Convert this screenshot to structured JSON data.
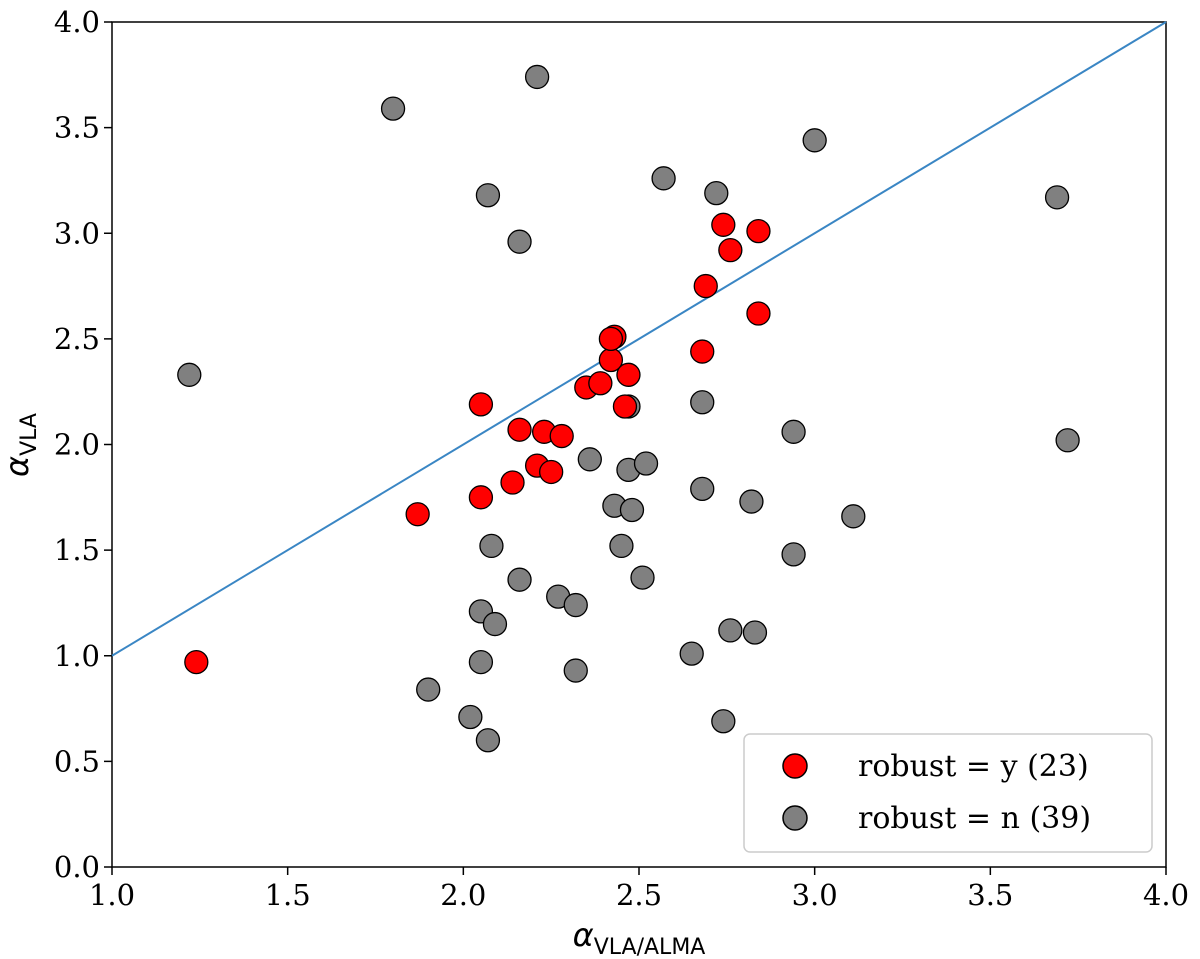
{
  "chart_data": {
    "type": "scatter",
    "title": "",
    "xlabel": {
      "symbol": "α",
      "subscript": "VLA/ALMA"
    },
    "ylabel": {
      "symbol": "α",
      "subscript": "VLA"
    },
    "xlim": [
      1.0,
      4.0
    ],
    "ylim": [
      0.0,
      4.0
    ],
    "x_ticks": [
      "1.0",
      "1.5",
      "2.0",
      "2.5",
      "3.0",
      "3.5",
      "4.0"
    ],
    "y_ticks": [
      "0.0",
      "0.5",
      "1.0",
      "1.5",
      "2.0",
      "2.5",
      "3.0",
      "3.5",
      "4.0"
    ],
    "grid": false,
    "legend_position": "bottom-right",
    "reference_line": {
      "x": [
        1.0,
        4.0
      ],
      "y": [
        1.0,
        4.0
      ],
      "color": "#3a86c4"
    },
    "series": [
      {
        "name": "robust = y (23)",
        "color": "#ff0000",
        "points": [
          [
            1.24,
            0.97
          ],
          [
            1.87,
            1.67
          ],
          [
            2.05,
            2.19
          ],
          [
            2.05,
            1.75
          ],
          [
            2.14,
            1.82
          ],
          [
            2.16,
            2.07
          ],
          [
            2.21,
            1.9
          ],
          [
            2.23,
            2.06
          ],
          [
            2.25,
            1.87
          ],
          [
            2.28,
            2.04
          ],
          [
            2.35,
            2.27
          ],
          [
            2.39,
            2.29
          ],
          [
            2.42,
            2.4
          ],
          [
            2.43,
            2.51
          ],
          [
            2.46,
            2.18
          ],
          [
            2.47,
            2.33
          ],
          [
            2.68,
            2.44
          ],
          [
            2.69,
            2.75
          ],
          [
            2.74,
            3.04
          ],
          [
            2.76,
            2.92
          ],
          [
            2.84,
            3.01
          ],
          [
            2.84,
            2.62
          ],
          [
            2.42,
            2.5
          ]
        ]
      },
      {
        "name": "robust = n (39)",
        "color": "#808080",
        "points": [
          [
            1.22,
            2.33
          ],
          [
            1.8,
            3.59
          ],
          [
            2.07,
            3.18
          ],
          [
            2.16,
            2.96
          ],
          [
            2.21,
            3.74
          ],
          [
            2.57,
            3.26
          ],
          [
            2.72,
            3.19
          ],
          [
            3.0,
            3.44
          ],
          [
            3.69,
            3.17
          ],
          [
            2.68,
            2.2
          ],
          [
            2.94,
            2.06
          ],
          [
            3.72,
            2.02
          ],
          [
            2.36,
            1.93
          ],
          [
            2.47,
            1.88
          ],
          [
            2.52,
            1.91
          ],
          [
            2.68,
            1.79
          ],
          [
            2.43,
            1.71
          ],
          [
            2.48,
            1.69
          ],
          [
            2.82,
            1.73
          ],
          [
            3.11,
            1.66
          ],
          [
            2.08,
            1.52
          ],
          [
            2.45,
            1.52
          ],
          [
            2.94,
            1.48
          ],
          [
            2.16,
            1.36
          ],
          [
            2.51,
            1.37
          ],
          [
            2.27,
            1.28
          ],
          [
            2.32,
            1.24
          ],
          [
            2.05,
            1.21
          ],
          [
            2.09,
            1.15
          ],
          [
            2.76,
            1.12
          ],
          [
            2.83,
            1.11
          ],
          [
            2.65,
            1.01
          ],
          [
            2.05,
            0.97
          ],
          [
            2.32,
            0.93
          ],
          [
            1.9,
            0.84
          ],
          [
            2.02,
            0.71
          ],
          [
            2.74,
            0.69
          ],
          [
            2.07,
            0.6
          ],
          [
            2.47,
            2.18
          ]
        ]
      }
    ]
  }
}
